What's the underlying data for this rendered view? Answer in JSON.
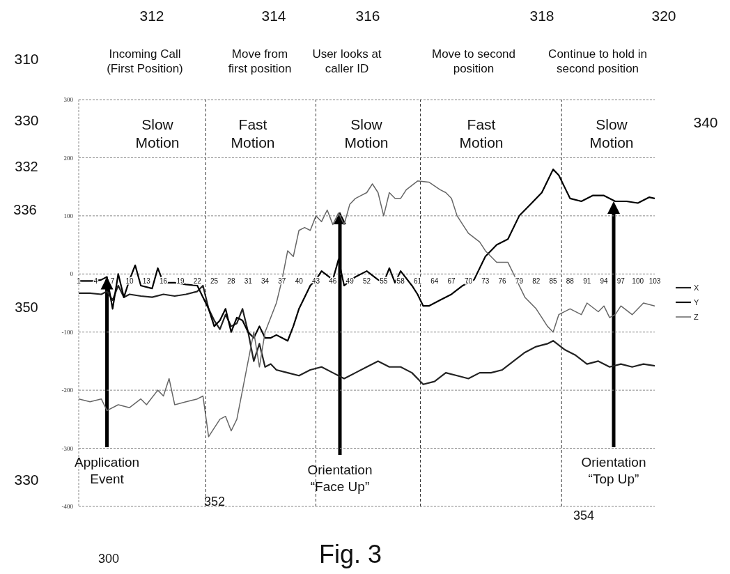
{
  "chart_data": {
    "type": "line",
    "annotations": [
      "310",
      "312",
      "Incoming Call\n(First Position)",
      "314",
      "Move from\nfirst position",
      "316",
      "User looks at\ncaller ID",
      "318",
      "Move to second\nposition",
      "320",
      "Continue to hold in\nsecond position",
      "330",
      "332",
      "336",
      "340",
      "350",
      "330",
      "352",
      "300",
      "354",
      "Fig. 3",
      "Slow\nMotion",
      "Fast\nMotion",
      "Slow\nMotion",
      "Fast\nMotion",
      "Slow\nMotion",
      {
        "text": "Application\nEvent",
        "x": 6,
        "y": -5
      },
      "Orientation\n“Face Up”",
      "Orientation\n“Top Up”"
    ],
    "series": [
      {
        "name": "X",
        "color": "#222222",
        "x": [
          1,
          3,
          5,
          6,
          7,
          8,
          9,
          10,
          12,
          14,
          16,
          18,
          20,
          22,
          23,
          24,
          25,
          26,
          27,
          28,
          29,
          30,
          31,
          32,
          33,
          34,
          35,
          36,
          38,
          40,
          42,
          44,
          46,
          48,
          50,
          52,
          54,
          56,
          58,
          60,
          62,
          64,
          66,
          68,
          70,
          72,
          74,
          76,
          78,
          80,
          82,
          84,
          85,
          87,
          89,
          91,
          93,
          95,
          97,
          99,
          101,
          103
        ],
        "values": [
          -33,
          -33,
          -35,
          -30,
          -45,
          -20,
          -40,
          -35,
          -38,
          -40,
          -35,
          -38,
          -35,
          -30,
          -20,
          -60,
          -80,
          -95,
          -70,
          -90,
          -85,
          -60,
          -100,
          -150,
          -120,
          -160,
          -155,
          -165,
          -170,
          -175,
          -165,
          -160,
          -170,
          -180,
          -170,
          -160,
          -150,
          -160,
          -160,
          -170,
          -190,
          -185,
          -170,
          -175,
          -180,
          -170,
          -170,
          -165,
          -150,
          -135,
          -125,
          -120,
          -115,
          -130,
          -140,
          -155,
          -150,
          -160,
          -155,
          -160,
          -155,
          -158
        ]
      },
      {
        "name": "Y",
        "color": "#000000",
        "x": [
          1,
          4,
          5,
          6,
          7,
          8,
          9,
          10,
          11,
          12,
          14,
          15,
          16,
          18,
          20,
          22,
          23,
          24,
          25,
          26,
          27,
          28,
          29,
          30,
          31,
          32,
          33,
          34,
          35,
          36,
          37,
          38,
          39,
          40,
          41,
          42,
          43,
          44,
          46,
          47,
          48,
          50,
          52,
          54,
          55,
          56,
          57,
          58,
          60,
          61,
          62,
          63,
          65,
          67,
          69,
          71,
          73,
          75,
          77,
          79,
          81,
          83,
          85,
          86,
          87,
          88,
          90,
          92,
          94,
          96,
          98,
          100,
          102,
          103
        ],
        "values": [
          -12,
          -12,
          -10,
          -5,
          -60,
          0,
          -40,
          -10,
          15,
          -20,
          -25,
          10,
          -15,
          -15,
          -18,
          -20,
          -40,
          -60,
          -90,
          -80,
          -60,
          -100,
          -75,
          -80,
          -100,
          -110,
          -90,
          -110,
          -110,
          -105,
          -110,
          -115,
          -90,
          -60,
          -40,
          -20,
          -10,
          5,
          -10,
          25,
          -20,
          -5,
          5,
          -10,
          -15,
          10,
          -15,
          5,
          -20,
          -35,
          -55,
          -55,
          -45,
          -35,
          -20,
          -10,
          30,
          50,
          60,
          100,
          120,
          140,
          180,
          170,
          150,
          130,
          125,
          135,
          135,
          125,
          125,
          122,
          132,
          130
        ]
      },
      {
        "name": "Z",
        "color": "#666666",
        "x": [
          1,
          3,
          5,
          6,
          8,
          10,
          12,
          13,
          15,
          16,
          17,
          18,
          20,
          22,
          23,
          24,
          26,
          27,
          28,
          29,
          30,
          31,
          32,
          33,
          34,
          36,
          37,
          38,
          39,
          40,
          41,
          42,
          43,
          44,
          45,
          46,
          47,
          48,
          49,
          50,
          51,
          52,
          53,
          54,
          55,
          56,
          57,
          58,
          59,
          61,
          63,
          65,
          66,
          67,
          68,
          70,
          72,
          73,
          75,
          77,
          78,
          80,
          82,
          84,
          85,
          86,
          88,
          90,
          91,
          93,
          94,
          95,
          96,
          97,
          99,
          101,
          103
        ],
        "values": [
          -215,
          -220,
          -215,
          -235,
          -225,
          -230,
          -215,
          -225,
          -200,
          -210,
          -180,
          -225,
          -220,
          -215,
          -210,
          -280,
          -250,
          -245,
          -270,
          -250,
          -200,
          -150,
          -100,
          -160,
          -100,
          -50,
          -10,
          40,
          30,
          75,
          80,
          75,
          100,
          90,
          110,
          85,
          105,
          85,
          120,
          130,
          135,
          140,
          155,
          140,
          100,
          140,
          130,
          130,
          145,
          160,
          158,
          145,
          140,
          130,
          100,
          70,
          55,
          40,
          20,
          20,
          0,
          -40,
          -60,
          -90,
          -100,
          -70,
          -60,
          -70,
          -50,
          -65,
          -55,
          -75,
          -70,
          -55,
          -70,
          -50,
          -55
        ]
      }
    ],
    "ref_lines": [
      {
        "axis": "x",
        "value": 23.5,
        "line_style": "dashed"
      },
      {
        "axis": "x",
        "value": 43,
        "line_style": "dashed"
      },
      {
        "axis": "x",
        "value": 61.5,
        "line_style": "dashed"
      },
      {
        "axis": "x",
        "value": 86.5,
        "line_style": "dashed"
      }
    ],
    "xlim": [
      1,
      103
    ],
    "xticks": [
      1,
      4,
      7,
      10,
      13,
      16,
      19,
      22,
      25,
      28,
      31,
      34,
      37,
      40,
      43,
      46,
      49,
      52,
      55,
      58,
      61,
      64,
      67,
      70,
      73,
      76,
      79,
      82,
      85,
      88,
      91,
      94,
      97,
      100,
      103
    ],
    "ylim": [
      -400,
      300
    ],
    "yticks": [
      -400,
      -300,
      -200,
      -100,
      0,
      100,
      200,
      300
    ],
    "grid": "y",
    "legend": "right",
    "marker": "none",
    "line_style": "solid"
  }
}
